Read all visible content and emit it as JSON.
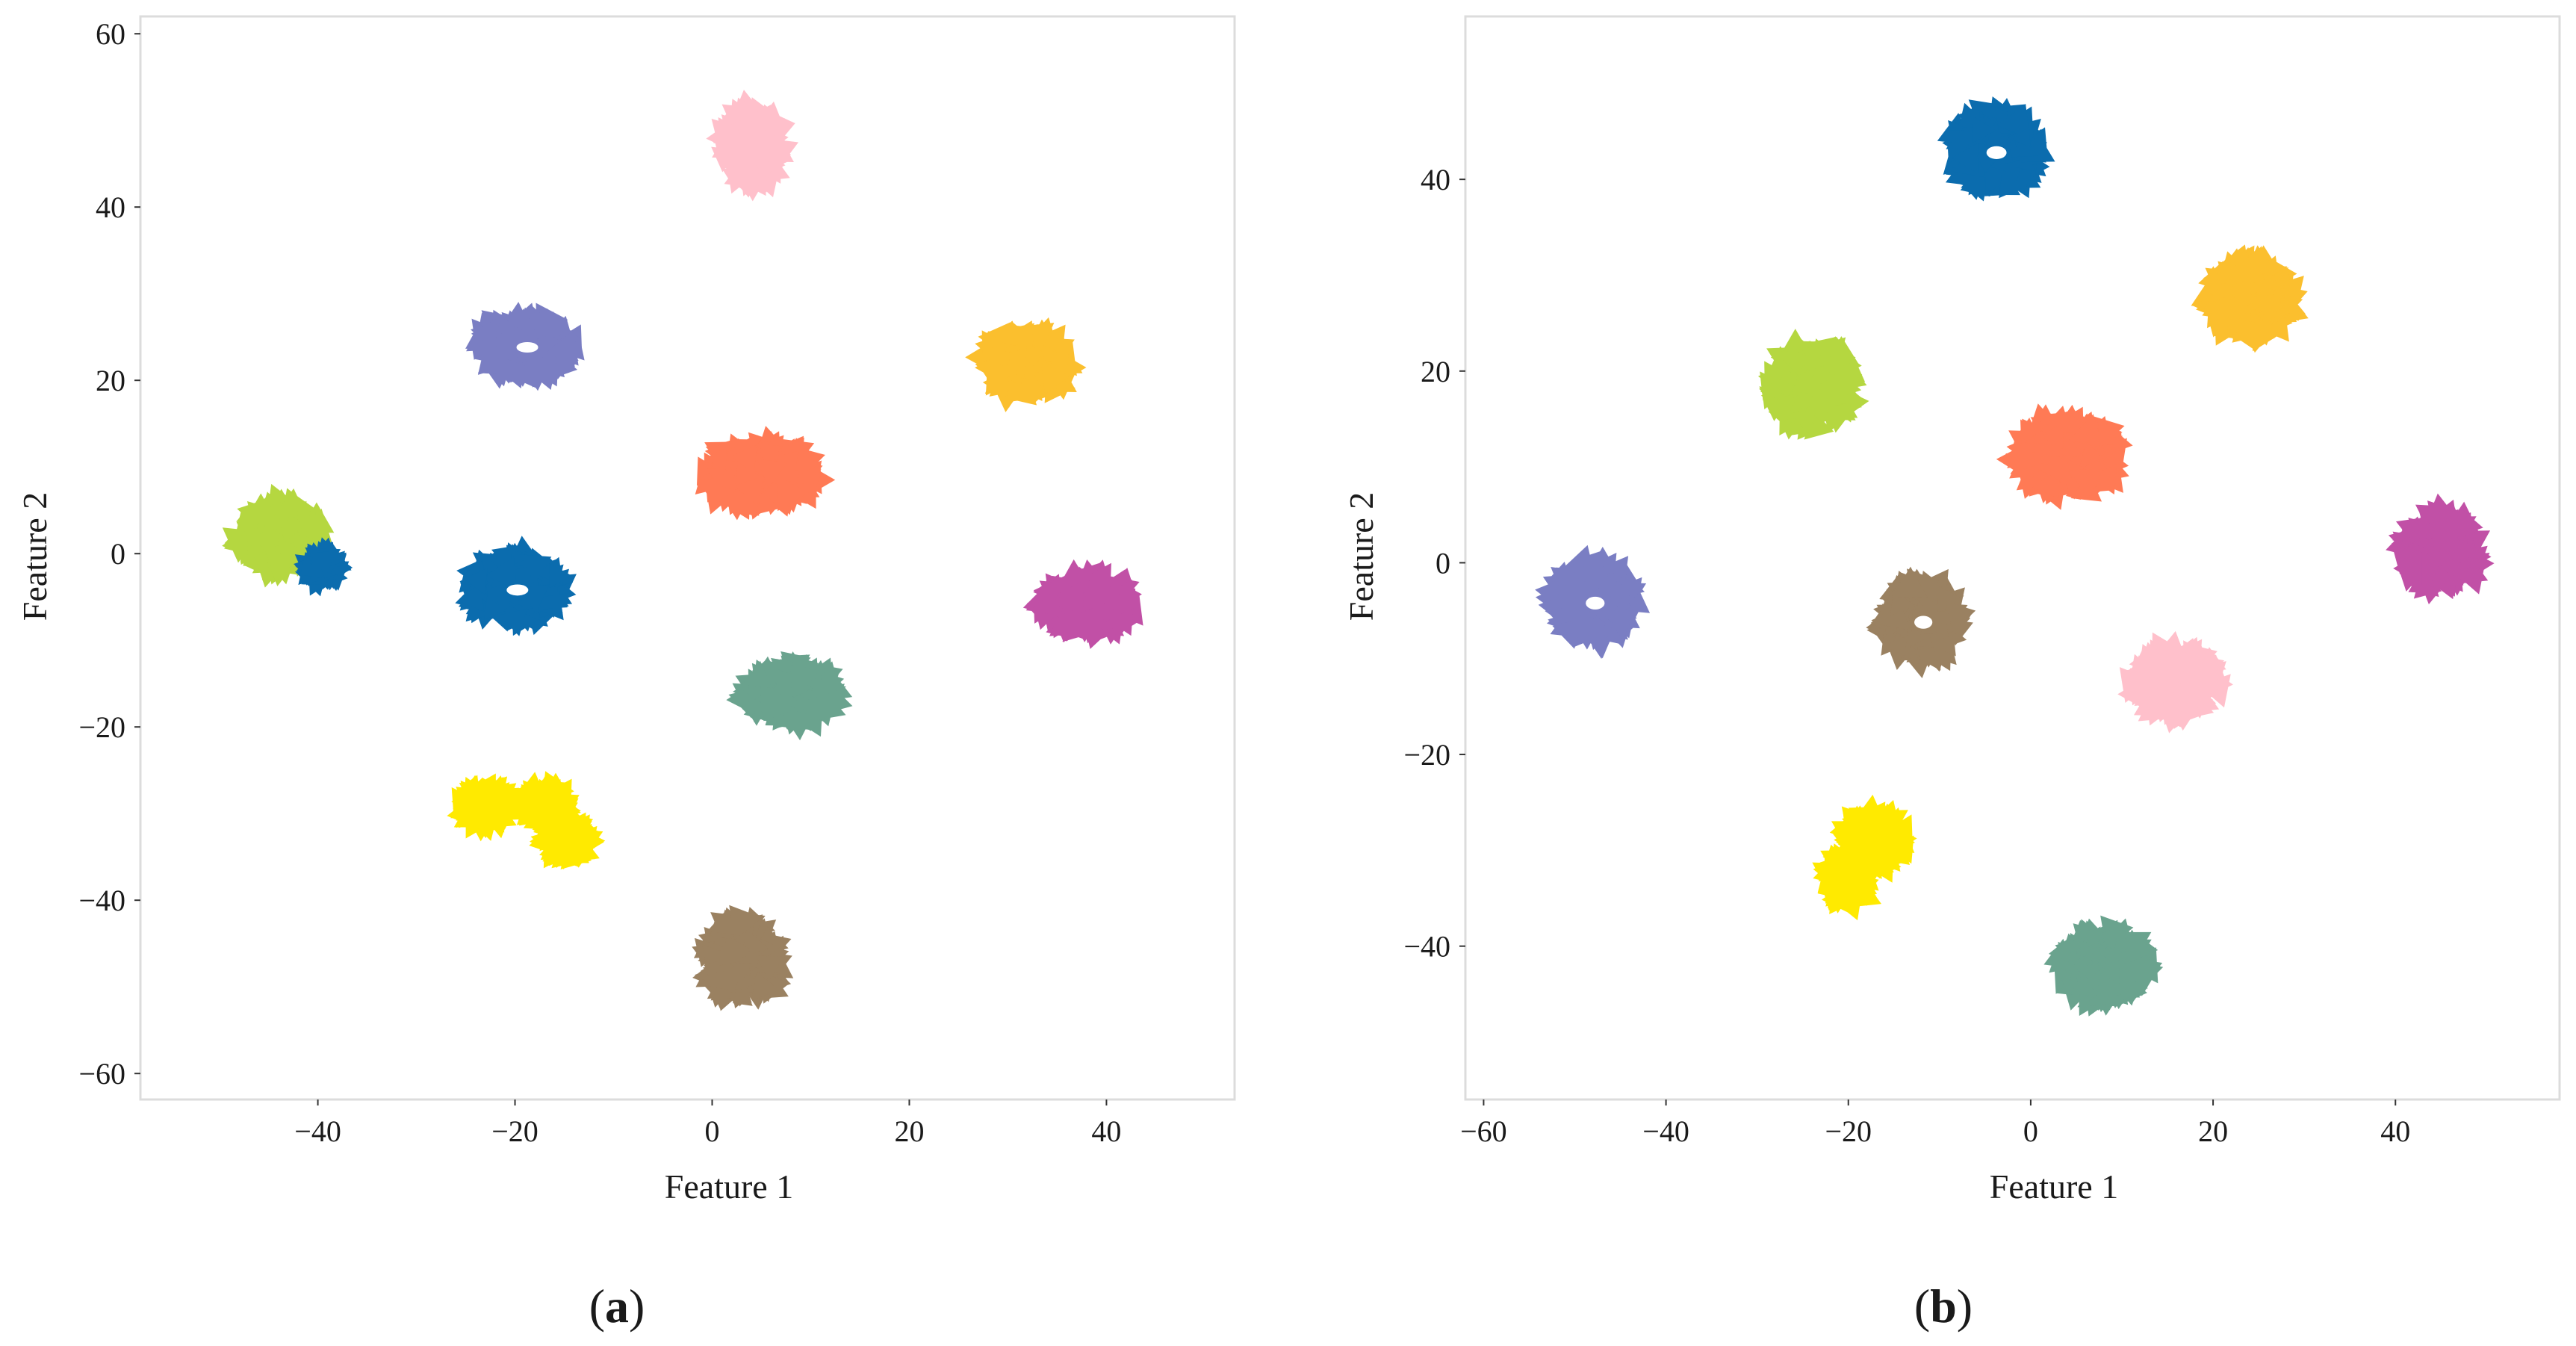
{
  "chart_data": [
    {
      "type": "scatter",
      "panel_label": "a",
      "xlabel": "Feature 1",
      "ylabel": "Feature 2",
      "xlim": [
        -58,
        53
      ],
      "ylim": [
        -63,
        62
      ],
      "xticks": [
        -40,
        -20,
        0,
        20,
        40
      ],
      "yticks": [
        -60,
        -40,
        -20,
        0,
        20,
        40,
        60
      ],
      "grid": false,
      "legend": "none",
      "clusters": [
        {
          "color": "#ffc0cb",
          "center": [
            4,
            47
          ],
          "spread": [
            3,
            4.5
          ],
          "hollow": false
        },
        {
          "color": "#7a7ec3",
          "center": [
            -19,
            24
          ],
          "spread": [
            5,
            3.8
          ],
          "hollow": true
        },
        {
          "color": "#fbbf2e",
          "center": [
            32,
            22
          ],
          "spread": [
            4.5,
            4
          ],
          "hollow": false
        },
        {
          "color": "#ff7a55",
          "center": [
            5,
            9
          ],
          "spread": [
            6,
            4
          ],
          "hollow": false
        },
        {
          "color": "#b5d740",
          "center": [
            -44,
            2
          ],
          "spread": [
            4.5,
            4
          ],
          "hollow": false
        },
        {
          "color": "#0b6cae",
          "center": [
            -20,
            -4
          ],
          "spread": [
            5,
            4
          ],
          "hollow": true
        },
        {
          "color": "#0b6cae",
          "center": [
            -39.5,
            -1.5
          ],
          "spread": [
            1.5,
            1.5
          ],
          "hollow": false
        },
        {
          "color": "#c150a6",
          "center": [
            38,
            -6
          ],
          "spread": [
            5,
            3.5
          ],
          "hollow": false
        },
        {
          "color": "#6aa38e",
          "center": [
            8,
            -16
          ],
          "spread": [
            5,
            3.5
          ],
          "hollow": false
        },
        {
          "color": "#ffea00",
          "center": [
            -23,
            -29
          ],
          "spread": [
            2.5,
            2.3
          ],
          "hollow": false
        },
        {
          "color": "#ffea00",
          "center": [
            -17,
            -29
          ],
          "spread": [
            2.2,
            2.2
          ],
          "hollow": false
        },
        {
          "color": "#ffea00",
          "center": [
            -15,
            -33
          ],
          "spread": [
            2.5,
            2.2
          ],
          "hollow": false
        },
        {
          "color": "#9a8161",
          "center": [
            3,
            -47
          ],
          "spread": [
            4,
            4.8
          ],
          "hollow": false
        }
      ]
    },
    {
      "type": "scatter",
      "panel_label": "b",
      "xlabel": "Feature 1",
      "ylabel": "Feature 2",
      "xlim": [
        -62,
        58
      ],
      "ylim": [
        -56,
        57
      ],
      "xticks": [
        -60,
        -40,
        -20,
        0,
        20,
        40
      ],
      "yticks": [
        -40,
        -20,
        0,
        20,
        40
      ],
      "grid": false,
      "legend": "none",
      "clusters": [
        {
          "color": "#0b6cae",
          "center": [
            -4,
            43
          ],
          "spread": [
            5,
            4.2
          ],
          "hollow": true
        },
        {
          "color": "#fbbf2e",
          "center": [
            24,
            27.5
          ],
          "spread": [
            5,
            4.2
          ],
          "hollow": false
        },
        {
          "color": "#b5d740",
          "center": [
            -24,
            18.5
          ],
          "spread": [
            5,
            4.5
          ],
          "hollow": false
        },
        {
          "color": "#ff7a55",
          "center": [
            4,
            11
          ],
          "spread": [
            6,
            4.2
          ],
          "hollow": false
        },
        {
          "color": "#c150a6",
          "center": [
            45,
            1
          ],
          "spread": [
            4.5,
            4.2
          ],
          "hollow": false
        },
        {
          "color": "#7a7ec3",
          "center": [
            -48,
            -4
          ],
          "spread": [
            4.7,
            4.2
          ],
          "hollow": true
        },
        {
          "color": "#9a8161",
          "center": [
            -12,
            -6
          ],
          "spread": [
            4.5,
            4.2
          ],
          "hollow": true
        },
        {
          "color": "#ffc0cb",
          "center": [
            16,
            -12.5
          ],
          "spread": [
            5,
            3.8
          ],
          "hollow": false
        },
        {
          "color": "#ffea00",
          "center": [
            -17,
            -29
          ],
          "spread": [
            3.5,
            3
          ],
          "hollow": false
        },
        {
          "color": "#ffea00",
          "center": [
            -20,
            -33
          ],
          "spread": [
            2.5,
            2.5
          ],
          "hollow": false
        },
        {
          "color": "#6aa38e",
          "center": [
            8,
            -42
          ],
          "spread": [
            5,
            3.8
          ],
          "hollow": false
        }
      ]
    }
  ]
}
